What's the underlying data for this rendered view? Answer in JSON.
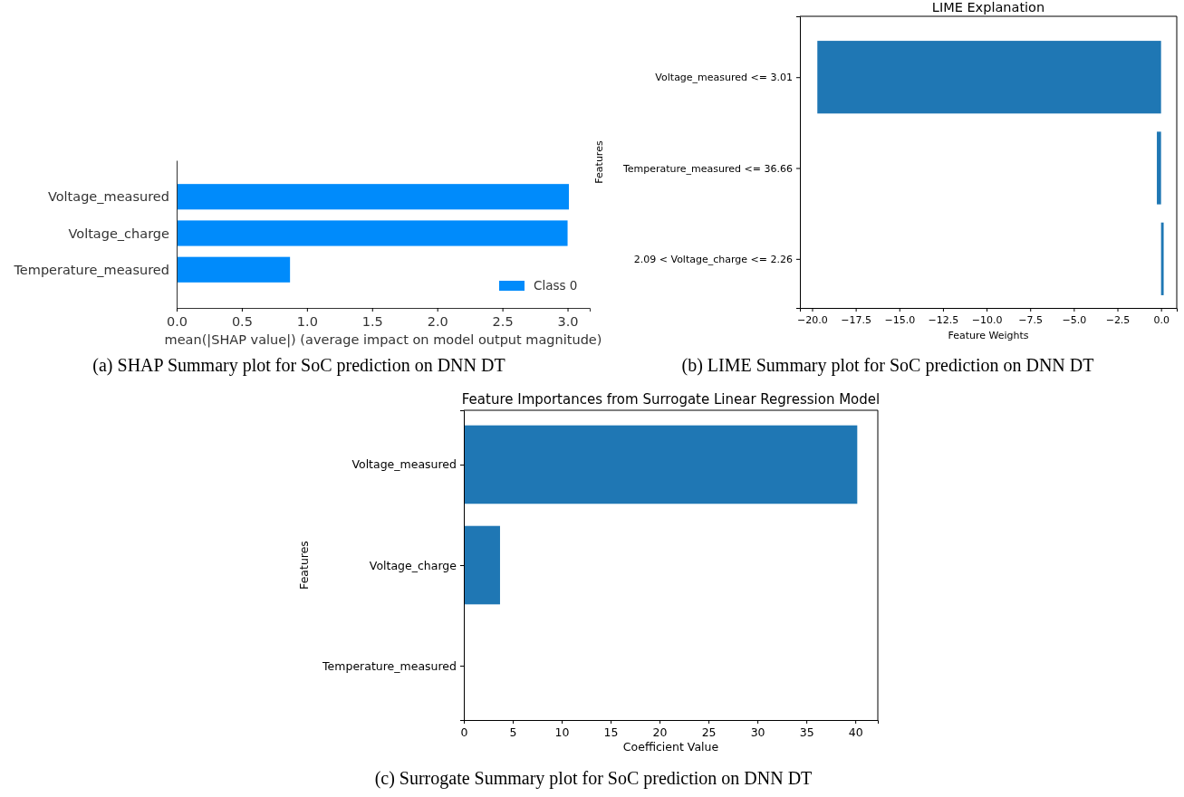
{
  "chart_data": [
    {
      "type": "bar",
      "orientation": "horizontal",
      "categories": [
        "Voltage_measured",
        "Voltage_charge",
        "Temperature_measured"
      ],
      "series": [
        {
          "name": "Class 0",
          "color": "#008bfb",
          "values": [
            3.01,
            3.0,
            0.87
          ]
        }
      ],
      "xlim": [
        0,
        3.17
      ],
      "xticks": [
        {
          "value": 0,
          "label": "0.0"
        },
        {
          "value": 0.5,
          "label": "0.5"
        },
        {
          "value": 1,
          "label": "1.0"
        },
        {
          "value": 1.5,
          "label": "1.5"
        },
        {
          "value": 2,
          "label": "2.0"
        },
        {
          "value": 2.5,
          "label": "2.5"
        },
        {
          "value": 3,
          "label": "3.0"
        }
      ],
      "xlabel": "mean(|SHAP value|) (average impact on model output magnitude)",
      "legend": "bottom right",
      "annotations": [
        "(a) SHAP Summary plot for SoC prediction on DNN DT"
      ]
    },
    {
      "type": "bar",
      "orientation": "horizontal",
      "title": "LIME Explanation",
      "categories": [
        "Voltage_measured <= 3.01",
        "Temperature_measured <= 36.66",
        "2.09 < Voltage_charge <= 2.26"
      ],
      "series": [
        {
          "color": "#1f77b4",
          "values": [
            -19.7,
            -0.24,
            0.15
          ]
        }
      ],
      "xlim": [
        -20.7,
        0.9
      ],
      "xticks": [
        {
          "value": -20,
          "label": "−20.0"
        },
        {
          "value": -17.5,
          "label": "−17.5"
        },
        {
          "value": -15,
          "label": "−15.0"
        },
        {
          "value": -12.5,
          "label": "−12.5"
        },
        {
          "value": -10,
          "label": "−10.0"
        },
        {
          "value": -7.5,
          "label": "−7.5"
        },
        {
          "value": -5,
          "label": "−5.0"
        },
        {
          "value": -2.5,
          "label": "−2.5"
        },
        {
          "value": 0,
          "label": "0.0"
        }
      ],
      "xlabel": "Feature Weights",
      "ylabel": "Features",
      "annotations": [
        "(b) LIME Summary plot for SoC prediction on DNN DT"
      ]
    },
    {
      "type": "bar",
      "orientation": "horizontal",
      "title": "Feature Importances from Surrogate Linear Regression Model",
      "categories": [
        "Voltage_measured",
        "Voltage_charge",
        "Temperature_measured"
      ],
      "series": [
        {
          "color": "#1f77b4",
          "values": [
            40.2,
            3.7,
            0
          ]
        }
      ],
      "xlim": [
        0,
        42.3
      ],
      "xticks": [
        0,
        5,
        10,
        15,
        20,
        25,
        30,
        35,
        40
      ],
      "xlabel": "Coefficient Value",
      "ylabel": "Features",
      "annotations": [
        "(c) Surrogate Summary plot for SoC prediction on DNN DT"
      ]
    }
  ]
}
